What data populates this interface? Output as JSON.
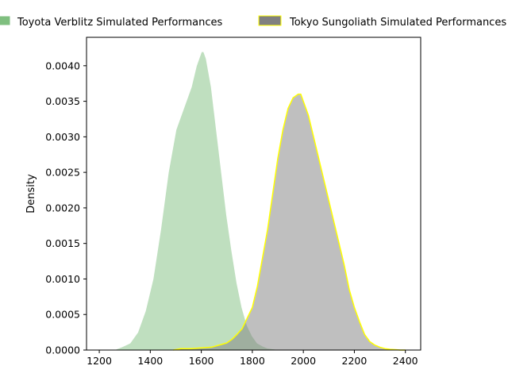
{
  "chart_data": {
    "type": "area",
    "title": "",
    "xlabel": "",
    "ylabel": "Density",
    "xlim": [
      1150,
      2460
    ],
    "ylim": [
      0,
      0.0044
    ],
    "x_ticks": [
      "1200",
      "1400",
      "1600",
      "1800",
      "2000",
      "2200",
      "2400"
    ],
    "y_ticks": [
      "0.0000",
      "0.0005",
      "0.0010",
      "0.0015",
      "0.0020",
      "0.0025",
      "0.0030",
      "0.0035",
      "0.0040"
    ],
    "grid": false,
    "legend_position": "top",
    "series": [
      {
        "name": "Toyota Verblitz Simulated Performances",
        "fill": "#7fbf7f",
        "edge": "#ffffff",
        "x": [
          1255,
          1290,
          1320,
          1350,
          1380,
          1410,
          1440,
          1470,
          1500,
          1530,
          1560,
          1580,
          1600,
          1610,
          1620,
          1640,
          1660,
          1680,
          1700,
          1720,
          1740,
          1760,
          1780,
          1800,
          1820,
          1840,
          1860,
          1880,
          1900,
          1940,
          1980,
          2020
        ],
        "y": [
          0.0,
          5e-05,
          0.0001,
          0.00025,
          0.00055,
          0.001,
          0.0017,
          0.0025,
          0.0031,
          0.0034,
          0.0037,
          0.004,
          0.0042,
          0.0042,
          0.0041,
          0.0037,
          0.0031,
          0.0025,
          0.0019,
          0.0014,
          0.00095,
          0.0006,
          0.00035,
          0.0002,
          0.0001,
          6e-05,
          3e-05,
          2e-05,
          1e-05,
          5e-06,
          0.0,
          0.0
        ]
      },
      {
        "name": "Tokyo Sungoliath Simulated Performances",
        "fill": "#808080",
        "edge": "#ffff00",
        "x": [
          1490,
          1520,
          1560,
          1600,
          1640,
          1680,
          1700,
          1720,
          1740,
          1760,
          1780,
          1800,
          1820,
          1840,
          1860,
          1880,
          1900,
          1920,
          1940,
          1960,
          1980,
          1990,
          2000,
          2020,
          2040,
          2060,
          2080,
          2100,
          2120,
          2140,
          2160,
          2180,
          2200,
          2220,
          2240,
          2260,
          2280,
          2300,
          2320,
          2340,
          2360,
          2380,
          2400
        ],
        "y": [
          0.0,
          2e-05,
          2e-05,
          3e-05,
          4e-05,
          8e-05,
          0.0001,
          0.00015,
          0.00022,
          0.0003,
          0.00045,
          0.0006,
          0.0009,
          0.0013,
          0.0017,
          0.0022,
          0.0027,
          0.0031,
          0.0034,
          0.00355,
          0.0036,
          0.0036,
          0.0035,
          0.0033,
          0.003,
          0.0027,
          0.0024,
          0.0021,
          0.0018,
          0.0015,
          0.0012,
          0.00085,
          0.0006,
          0.0004,
          0.00022,
          0.00012,
          7e-05,
          4e-05,
          2e-05,
          1e-05,
          5e-06,
          0.0,
          0.0
        ]
      }
    ]
  }
}
